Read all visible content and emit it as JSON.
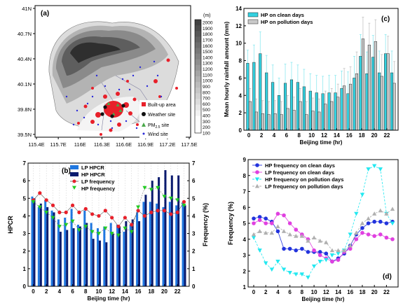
{
  "map": {
    "label": "(a)",
    "lat_ticks": [
      "41N",
      "40.7N",
      "40.4N",
      "40.1N",
      "39.8N",
      "39.5N"
    ],
    "lon_ticks": [
      "115.4E",
      "115.7E",
      "116E",
      "116.3E",
      "116.6E",
      "116.9E",
      "117.2E",
      "117.5E"
    ],
    "colorbar_unit": "(m)",
    "colorbar_ticks": [
      "2000",
      "1900",
      "1800",
      "1700",
      "1600",
      "1500",
      "1400",
      "1300",
      "1200",
      "1100",
      "1000",
      "900",
      "800",
      "700",
      "600",
      "500",
      "400",
      "300",
      "200",
      "100"
    ],
    "legend": [
      "Built-up area",
      "Weather site",
      "PM",
      "site",
      "Wind site"
    ],
    "legend_sub": "2.5",
    "colors": {
      "built": "#e8202a",
      "weather": "#111111",
      "pm": "#4aa84a",
      "wind": "#2b2bd8"
    }
  },
  "chart_data": [
    {
      "panel": "(b)",
      "type": "bar",
      "x": [
        0,
        1,
        2,
        3,
        4,
        5,
        6,
        7,
        8,
        9,
        10,
        11,
        12,
        13,
        14,
        15,
        16,
        17,
        18,
        19,
        20,
        21,
        22,
        23
      ],
      "xticks": [
        "0",
        "2",
        "4",
        "6",
        "8",
        "10",
        "12",
        "14",
        "16",
        "18",
        "20",
        "22"
      ],
      "xlabel": "Beijing time (hr)",
      "ylabel_left": "HPCR",
      "ylabel_right": "Frequency (%)",
      "ylim_left": [
        0,
        7
      ],
      "ylim_right": [
        0,
        7
      ],
      "yticks_left": [
        "0",
        "1",
        "2",
        "3",
        "4",
        "5",
        "6",
        "7"
      ],
      "yticks_right": [
        "0",
        "1",
        "2",
        "3",
        "4",
        "5",
        "6",
        "7"
      ],
      "series": [
        {
          "name": "LP HPCR",
          "kind": "bar",
          "color": "#1f77e0",
          "values": [
            5.1,
            4.5,
            4.9,
            4.3,
            3.8,
            3.9,
            4.4,
            3.5,
            4.3,
            3.6,
            3.3,
            3.4,
            3.6,
            3.5,
            3.1,
            3.5,
            4.2,
            4.8,
            4.8,
            4.7,
            4.5,
            4.8,
            4.6,
            4.8
          ]
        },
        {
          "name": "HP HPCR",
          "kind": "bar",
          "color": "#0a1a6e",
          "values": [
            5.0,
            4.7,
            4.5,
            4.2,
            3.1,
            3.2,
            3.3,
            3.4,
            3.6,
            2.7,
            2.6,
            2.5,
            3.0,
            3.4,
            3.7,
            3.8,
            3.7,
            5.2,
            6.0,
            6.2,
            6.6,
            6.3,
            6.3,
            4.6
          ]
        },
        {
          "name": "LP frequency",
          "kind": "line",
          "color": "#e8202a",
          "values": [
            4.9,
            5.3,
            4.9,
            4.6,
            4.2,
            4.2,
            4.6,
            4.2,
            4.4,
            4.1,
            4.0,
            4.3,
            3.9,
            3.4,
            3.9,
            3.5,
            4.3,
            4.0,
            4.2,
            4.3,
            4.3,
            4.1,
            4.2,
            4.8
          ]
        },
        {
          "name": "HP frequency",
          "kind": "line",
          "color": "#22cc22",
          "values": [
            4.8,
            4.5,
            4.2,
            3.9,
            3.4,
            3.5,
            3.7,
            3.2,
            3.4,
            3.1,
            3.0,
            3.3,
            3.0,
            2.9,
            3.3,
            3.1,
            4.5,
            5.6,
            5.5,
            5.6,
            5.1,
            5.0,
            4.9,
            4.6
          ]
        }
      ]
    },
    {
      "panel": "(c)",
      "type": "bar",
      "x": [
        0,
        1,
        2,
        3,
        4,
        5,
        6,
        7,
        8,
        9,
        10,
        11,
        12,
        13,
        14,
        15,
        16,
        17,
        18,
        19,
        20,
        21,
        22,
        23
      ],
      "xticks": [
        "0",
        "2",
        "4",
        "6",
        "8",
        "10",
        "12",
        "14",
        "16",
        "18",
        "20",
        "22"
      ],
      "xlabel": "Beijing time (hr)",
      "ylabel": "Mean hourly rainfall amount (mm)",
      "ylim": [
        0,
        14
      ],
      "yticks": [
        "0",
        "2",
        "4",
        "6",
        "8",
        "10",
        "12",
        "14"
      ],
      "series": [
        {
          "name": "HP on clean days",
          "kind": "bar",
          "color": "#33d1e0",
          "values": [
            7.7,
            7.8,
            8.8,
            6.6,
            5.5,
            4.0,
            5.4,
            5.8,
            5.5,
            5.0,
            4.5,
            4.3,
            4.2,
            4.3,
            4.3,
            4.8,
            4.2,
            6.0,
            8.5,
            6.5,
            8.4,
            6.6,
            8.8,
            6.6
          ],
          "err": [
            1.5,
            2.0,
            2.5,
            2.0,
            2.0,
            2.0,
            2.2,
            2.0,
            2.0,
            2.0,
            2.0,
            2.0,
            2.0,
            2.0,
            2.0,
            2.0,
            2.5,
            2.5,
            2.5,
            2.5,
            2.5,
            2.5,
            2.2,
            2.5
          ]
        },
        {
          "name": "HP on pollution days",
          "kind": "bar",
          "color": "#c9c9c9",
          "values": [
            3.3,
            2.1,
            1.9,
            1.8,
            1.9,
            1.8,
            2.5,
            2.3,
            3.3,
            1.8,
            2.2,
            2.1,
            3.0,
            3.3,
            3.8,
            5.1,
            5.3,
            6.5,
            10.5,
            9.8,
            10.2,
            6.2,
            8.8,
            5.4
          ],
          "err": [
            1.5,
            1.5,
            1.5,
            1.5,
            1.5,
            1.5,
            1.5,
            1.5,
            1.5,
            1.5,
            1.5,
            1.5,
            1.5,
            1.5,
            1.5,
            2.0,
            2.0,
            2.5,
            2.5,
            2.5,
            2.5,
            2.5,
            2.0,
            2.5
          ]
        }
      ]
    },
    {
      "panel": "(d)",
      "type": "line",
      "x": [
        0,
        1,
        2,
        3,
        4,
        5,
        6,
        7,
        8,
        9,
        10,
        11,
        12,
        13,
        14,
        15,
        16,
        17,
        18,
        19,
        20,
        21,
        22,
        23
      ],
      "xticks": [
        "0",
        "2",
        "4",
        "6",
        "8",
        "10",
        "12",
        "14",
        "16",
        "18",
        "20",
        "22"
      ],
      "xlabel": "Beijing time (hr)",
      "ylabel": "Frequency (%)",
      "ylim": [
        1,
        9
      ],
      "yticks": [
        "1",
        "2",
        "3",
        "4",
        "5",
        "6",
        "7",
        "8",
        "9"
      ],
      "series": [
        {
          "name": "HP frequency on clean days",
          "color": "#2233dd",
          "marker": "circle",
          "values": [
            5.3,
            5.4,
            5.3,
            5.1,
            4.5,
            3.4,
            3.4,
            3.3,
            3.4,
            3.2,
            3.2,
            3.2,
            3.1,
            2.6,
            2.8,
            3.1,
            3.6,
            4.3,
            4.7,
            5.0,
            5.1,
            5.1,
            5.0,
            5.1
          ]
        },
        {
          "name": "LP frequency on clean days",
          "color": "#e040e0",
          "marker": "circle",
          "values": [
            5.0,
            5.2,
            5.0,
            5.0,
            5.6,
            5.5,
            5.0,
            4.6,
            4.3,
            4.0,
            3.3,
            3.0,
            2.8,
            2.6,
            2.7,
            3.2,
            3.4,
            4.0,
            4.4,
            4.3,
            4.2,
            4.3,
            4.1,
            4.0
          ]
        },
        {
          "name": "HP frequency on pollution days",
          "color": "#22e8f0",
          "marker": "triangle-down",
          "values": [
            4.1,
            3.3,
            2.5,
            2.1,
            2.6,
            2.1,
            1.9,
            1.8,
            1.8,
            1.6,
            2.3,
            2.6,
            2.7,
            3.0,
            3.1,
            3.3,
            4.3,
            5.6,
            6.8,
            8.4,
            8.6,
            8.4,
            5.6,
            5.0
          ]
        },
        {
          "name": "LP frequency on pollution days",
          "color": "#b0b0b0",
          "marker": "triangle-up",
          "values": [
            4.3,
            4.5,
            4.4,
            4.4,
            4.8,
            4.5,
            4.3,
            4.2,
            4.2,
            3.9,
            4.1,
            3.9,
            3.8,
            3.3,
            3.3,
            3.3,
            3.6,
            4.4,
            5.0,
            5.3,
            5.6,
            5.8,
            5.6,
            5.9
          ]
        }
      ]
    }
  ]
}
